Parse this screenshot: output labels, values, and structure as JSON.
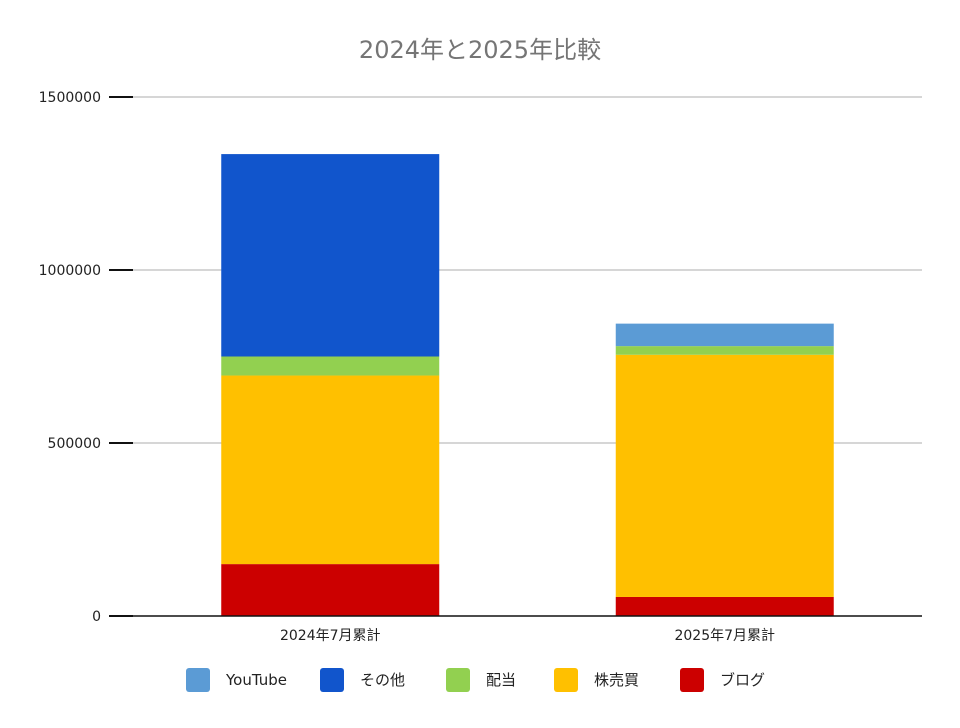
{
  "chart_data": {
    "type": "bar",
    "stacked": true,
    "title": "2024年と2025年比較",
    "xlabel": "",
    "ylabel": "",
    "categories": [
      "2024年7月累計",
      "2025年7月累計"
    ],
    "series": [
      {
        "name": "ブログ",
        "color": "#cc0000",
        "values": [
          150000,
          55000
        ]
      },
      {
        "name": "株売買",
        "color": "#ffc000",
        "values": [
          545000,
          700000
        ]
      },
      {
        "name": "配当",
        "color": "#92d050",
        "values": [
          55000,
          25000
        ]
      },
      {
        "name": "その他",
        "color": "#1155cc",
        "values": [
          585000,
          0
        ]
      },
      {
        "name": "YouTube",
        "color": "#5b9bd5",
        "values": [
          0,
          65000
        ]
      }
    ],
    "legend_order": [
      "YouTube",
      "その他",
      "配当",
      "株売買",
      "ブログ"
    ],
    "ylim": [
      0,
      1500000
    ],
    "yticks": [
      "0",
      "500000",
      "1000000",
      "1500000"
    ],
    "grid": true,
    "legend_position": "bottom"
  }
}
